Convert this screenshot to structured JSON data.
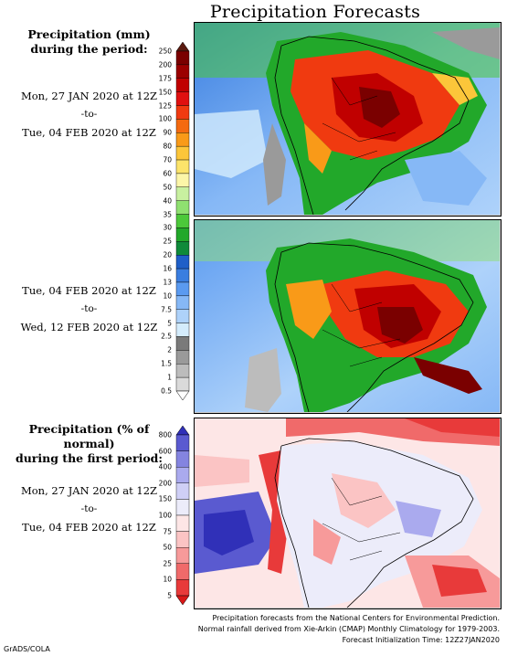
{
  "title": "Precipitation Forecasts",
  "precip_section": {
    "heading_line1": "Precipitation (mm)",
    "heading_line2": "during the period:",
    "period1": {
      "start": "Mon, 27 JAN 2020 at 12Z",
      "sep": "-to-",
      "end": "Tue, 04 FEB 2020 at 12Z"
    },
    "period2": {
      "start": "Tue, 04 FEB 2020 at 12Z",
      "sep": "-to-",
      "end": "Wed, 12 FEB 2020 at 12Z"
    },
    "colorbar_labels": [
      "250",
      "200",
      "175",
      "150",
      "125",
      "100",
      "90",
      "80",
      "70",
      "60",
      "50",
      "40",
      "35",
      "30",
      "25",
      "20",
      "16",
      "13",
      "10",
      "7.5",
      "5",
      "2.5",
      "2",
      "1.5",
      "1",
      "0.5"
    ],
    "colorbar_colors": [
      "#5a1a10",
      "#7a0000",
      "#9b0000",
      "#c00000",
      "#e01010",
      "#f03a10",
      "#f46a10",
      "#f99a18",
      "#fcc63a",
      "#fce46a",
      "#fcf6a8",
      "#c8f0a0",
      "#8fe070",
      "#4cc83a",
      "#22a82a",
      "#0f8a3a",
      "#1f5fc8",
      "#3a7ee0",
      "#5a9af0",
      "#86b8f6",
      "#aed2fa",
      "#d4ecfc",
      "#7a7a7a",
      "#9a9a9a",
      "#bcbcbc",
      "#dadada",
      "#ffffff"
    ]
  },
  "normal_section": {
    "heading_line1": "Precipitation (% of normal)",
    "heading_line2": "during the first period:",
    "period": {
      "start": "Mon, 27 JAN 2020 at 12Z",
      "sep": "-to-",
      "end": "Tue, 04 FEB 2020 at 12Z"
    },
    "colorbar_labels": [
      "800",
      "600",
      "400",
      "200",
      "150",
      "100",
      "75",
      "50",
      "25",
      "10",
      "5"
    ],
    "colorbar_colors": [
      "#3030b8",
      "#5a5ad0",
      "#8484e0",
      "#aaaaee",
      "#cfcff6",
      "#ececfa",
      "#fde6e6",
      "#fbc4c4",
      "#f79a9a",
      "#f06a6a",
      "#e83a3a",
      "#d81818"
    ]
  },
  "footnote": {
    "line1": "Precipitation forecasts from the National Centers for Environmental Prediction.",
    "line2": "Normal rainfall derived from Xie-Arkin (CMAP) Monthly Climatology for 1979-2003.",
    "line3": "Forecast Initialization Time: 12Z27JAN2020"
  },
  "credit": "GrADS/COLA"
}
